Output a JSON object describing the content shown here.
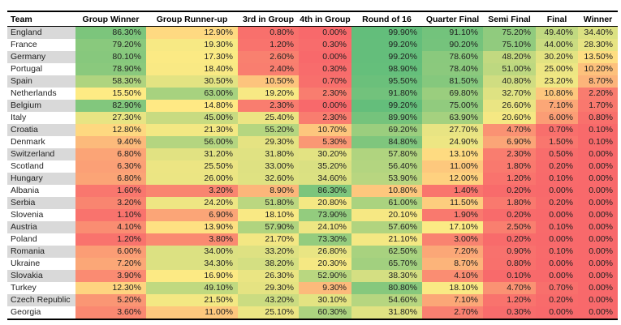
{
  "chart_data": {
    "type": "heatmap",
    "columns": [
      "Team",
      "Group Winner",
      "Group Runner-up",
      "3rd in Group",
      "4th in Group",
      "Round of 16",
      "Quarter Final",
      "Semi Final",
      "Final",
      "Winner"
    ],
    "rows": [
      {
        "team": "England",
        "values": [
          "86.30%",
          "12.90%",
          "0.80%",
          "0.00%",
          "99.90%",
          "91.10%",
          "75.20%",
          "49.40%",
          "34.40%"
        ]
      },
      {
        "team": "France",
        "values": [
          "79.20%",
          "19.30%",
          "1.20%",
          "0.30%",
          "99.20%",
          "90.20%",
          "75.10%",
          "44.00%",
          "28.30%"
        ]
      },
      {
        "team": "Germany",
        "values": [
          "80.10%",
          "17.30%",
          "2.60%",
          "0.00%",
          "99.20%",
          "78.60%",
          "48.20%",
          "30.20%",
          "13.50%"
        ]
      },
      {
        "team": "Portugal",
        "values": [
          "78.90%",
          "18.40%",
          "2.40%",
          "0.30%",
          "98.90%",
          "78.40%",
          "51.00%",
          "25.00%",
          "10.20%"
        ]
      },
      {
        "team": "Spain",
        "values": [
          "58.30%",
          "30.50%",
          "10.50%",
          "0.70%",
          "95.50%",
          "81.50%",
          "40.80%",
          "23.20%",
          "8.70%"
        ]
      },
      {
        "team": "Netherlands",
        "values": [
          "15.50%",
          "63.00%",
          "19.20%",
          "2.30%",
          "91.80%",
          "69.80%",
          "32.70%",
          "10.80%",
          "2.20%"
        ]
      },
      {
        "team": "Belgium",
        "values": [
          "82.90%",
          "14.80%",
          "2.30%",
          "0.00%",
          "99.20%",
          "75.00%",
          "26.60%",
          "7.10%",
          "1.70%"
        ]
      },
      {
        "team": "Italy",
        "values": [
          "27.30%",
          "45.00%",
          "25.40%",
          "2.30%",
          "89.90%",
          "63.90%",
          "20.60%",
          "6.00%",
          "0.80%"
        ]
      },
      {
        "team": "Croatia",
        "values": [
          "12.80%",
          "21.30%",
          "55.20%",
          "10.70%",
          "69.20%",
          "27.70%",
          "4.70%",
          "0.70%",
          "0.10%"
        ]
      },
      {
        "team": "Denmark",
        "values": [
          "9.40%",
          "56.00%",
          "29.30%",
          "5.30%",
          "84.80%",
          "24.90%",
          "6.90%",
          "1.50%",
          "0.10%"
        ]
      },
      {
        "team": "Switzerland",
        "values": [
          "6.80%",
          "31.20%",
          "31.80%",
          "30.20%",
          "57.80%",
          "13.10%",
          "2.30%",
          "0.50%",
          "0.00%"
        ]
      },
      {
        "team": "Scotland",
        "values": [
          "6.30%",
          "25.50%",
          "33.00%",
          "35.20%",
          "56.40%",
          "11.00%",
          "1.80%",
          "0.20%",
          "0.00%"
        ]
      },
      {
        "team": "Hungary",
        "values": [
          "6.80%",
          "26.00%",
          "32.60%",
          "34.60%",
          "53.90%",
          "12.00%",
          "1.20%",
          "0.10%",
          "0.00%"
        ]
      },
      {
        "team": "Albania",
        "values": [
          "1.60%",
          "3.20%",
          "8.90%",
          "86.30%",
          "10.80%",
          "1.40%",
          "0.20%",
          "0.00%",
          "0.00%"
        ]
      },
      {
        "team": "Serbia",
        "values": [
          "3.20%",
          "24.20%",
          "51.80%",
          "20.80%",
          "61.00%",
          "11.50%",
          "1.80%",
          "0.20%",
          "0.00%"
        ]
      },
      {
        "team": "Slovenia",
        "values": [
          "1.10%",
          "6.90%",
          "18.10%",
          "73.90%",
          "20.10%",
          "1.90%",
          "0.20%",
          "0.00%",
          "0.00%"
        ]
      },
      {
        "team": "Austria",
        "values": [
          "4.10%",
          "13.90%",
          "57.90%",
          "24.10%",
          "57.60%",
          "17.10%",
          "2.50%",
          "0.10%",
          "0.00%"
        ]
      },
      {
        "team": "Poland",
        "values": [
          "1.20%",
          "3.80%",
          "21.70%",
          "73.30%",
          "21.10%",
          "3.00%",
          "0.20%",
          "0.00%",
          "0.00%"
        ]
      },
      {
        "team": "Romania",
        "values": [
          "6.00%",
          "34.00%",
          "33.20%",
          "26.80%",
          "62.50%",
          "7.20%",
          "0.90%",
          "0.10%",
          "0.00%"
        ]
      },
      {
        "team": "Ukraine",
        "values": [
          "7.20%",
          "34.30%",
          "38.20%",
          "20.30%",
          "65.70%",
          "8.70%",
          "0.80%",
          "0.00%",
          "0.00%"
        ]
      },
      {
        "team": "Slovakia",
        "values": [
          "3.90%",
          "16.90%",
          "26.30%",
          "52.90%",
          "38.30%",
          "4.10%",
          "0.10%",
          "0.00%",
          "0.00%"
        ]
      },
      {
        "team": "Turkey",
        "values": [
          "12.30%",
          "49.10%",
          "29.30%",
          "9.30%",
          "80.80%",
          "18.10%",
          "4.70%",
          "0.70%",
          "0.00%"
        ]
      },
      {
        "team": "Czech Republic",
        "values": [
          "5.20%",
          "21.50%",
          "43.20%",
          "30.10%",
          "54.60%",
          "7.10%",
          "1.20%",
          "0.20%",
          "0.00%"
        ]
      },
      {
        "team": "Georgia",
        "values": [
          "3.60%",
          "11.00%",
          "25.10%",
          "60.30%",
          "31.80%",
          "2.70%",
          "0.30%",
          "0.00%",
          "0.00%"
        ]
      }
    ],
    "color_scale": {
      "min_value": 0,
      "min_color": "#F8696B",
      "mid_value": 15,
      "mid_color": "#FFEB84",
      "max_value": 99.9,
      "max_color": "#63BE7B"
    },
    "team_column_stripe_colors": [
      "#D9D9D9",
      "#FFFFFF"
    ],
    "legend": "Cell color encodes probability: red = low, yellow = mid (~15%), green = high"
  }
}
